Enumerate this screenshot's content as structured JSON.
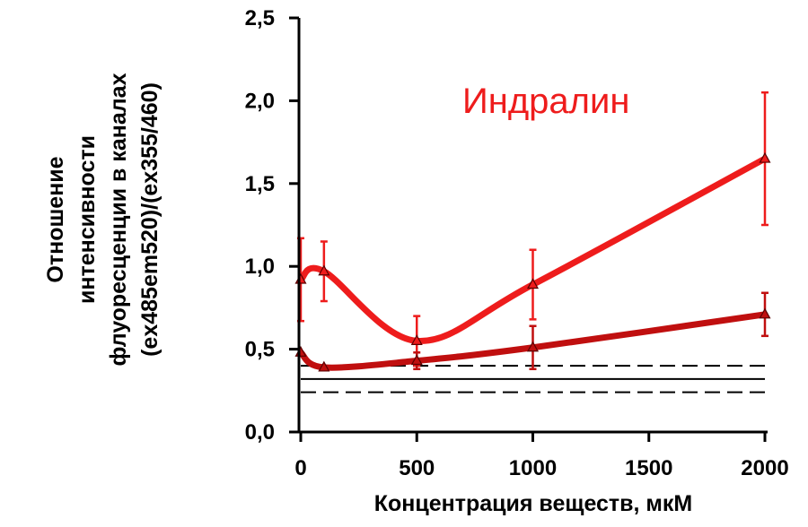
{
  "chart_data": {
    "type": "line",
    "title": "",
    "xlabel": "Концентрация веществ, мкМ",
    "ylabel_lines": [
      "Отношение",
      "интенсивности",
      "флуоресценции в каналах",
      "(ex485em520)/(ex355/460)"
    ],
    "xlim": [
      0,
      2000
    ],
    "ylim": [
      0,
      2.5
    ],
    "x_ticks": [
      0,
      500,
      1000,
      1500,
      2000
    ],
    "x_tick_labels": [
      "0",
      "500",
      "1000",
      "1500",
      "2000"
    ],
    "y_ticks": [
      0,
      0.5,
      1.0,
      1.5,
      2.0,
      2.5
    ],
    "y_tick_labels": [
      "0,0",
      "0,5",
      "1,0",
      "1,5",
      "2,0",
      "2,5"
    ],
    "grid": false,
    "annotation": "Индралин",
    "series": [
      {
        "color": "#ee1c1c",
        "x": [
          0,
          100,
          500,
          1000,
          2000
        ],
        "y": [
          0.92,
          0.97,
          0.55,
          0.89,
          1.65
        ],
        "err": [
          0.25,
          0.18,
          0.15,
          0.21,
          0.4
        ]
      },
      {
        "color": "#c00f0f",
        "x": [
          0,
          100,
          500,
          1000,
          2000
        ],
        "y": [
          0.48,
          0.39,
          0.43,
          0.51,
          0.71
        ],
        "err": [
          0.0,
          0.0,
          0.05,
          0.13,
          0.13
        ]
      }
    ],
    "reference_lines": {
      "solid": 0.32,
      "dashed": [
        0.4,
        0.24
      ]
    }
  }
}
